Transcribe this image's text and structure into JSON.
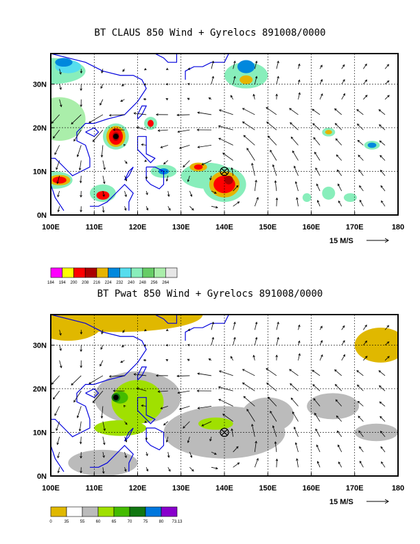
{
  "panels": [
    {
      "title": "BT CLAUS 850 Wind + Gyrelocs 891008/0000",
      "x_ticks": [
        "100E",
        "110E",
        "120E",
        "130E",
        "140E",
        "150E",
        "160E",
        "170E",
        "180"
      ],
      "y_ticks": [
        "0N",
        "10N",
        "20N",
        "30N"
      ],
      "ref_vector": "15 M/S",
      "colorbar_labels": [
        "184",
        "194",
        "200",
        "208",
        "216",
        "224",
        "232",
        "240",
        "248",
        "256",
        "264"
      ],
      "colorbar_colors": [
        "#ff00ff",
        "#ffff00",
        "#ff0000",
        "#aa0000",
        "#e6b400",
        "#0088dd",
        "#55ddee",
        "#88eebb",
        "#66cc66",
        "#aaeeaa",
        "#e6e6e6"
      ]
    },
    {
      "title": "BT Pwat 850 Wind + Gyrelocs 891008/0000",
      "x_ticks": [
        "100E",
        "110E",
        "120E",
        "130E",
        "140E",
        "150E",
        "160E",
        "170E",
        "180"
      ],
      "y_ticks": [
        "0N",
        "10N",
        "20N",
        "30N"
      ],
      "ref_vector": "15 M/S",
      "colorbar_labels": [
        "0",
        "35",
        "55",
        "60",
        "65",
        "70",
        "75",
        "80",
        "73.13"
      ],
      "colorbar_colors": [
        "#e0b800",
        "#ffffff",
        "#bbbbbb",
        "#a0e000",
        "#44bb00",
        "#117711",
        "#0077dd",
        "#8800cc"
      ]
    }
  ],
  "map": {
    "lon_range": [
      100,
      180
    ],
    "lat_range": [
      0,
      37
    ],
    "gyre_marker_icon": "circle-cross-icon",
    "gyre_marker_lonlat": [
      140,
      10
    ]
  }
}
